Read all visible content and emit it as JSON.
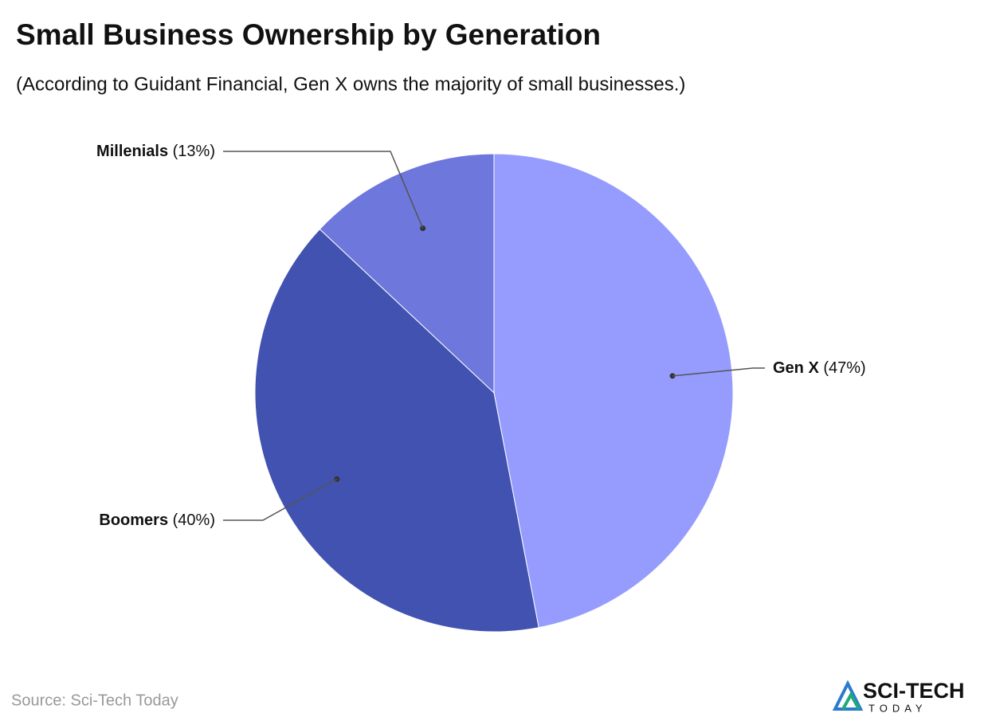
{
  "chart_data": {
    "type": "pie",
    "title": "Small Business Ownership by Generation",
    "subtitle": "(According to Guidant Financial, Gen X owns the majority of small businesses.)",
    "categories": [
      "Gen X",
      "Boomers",
      "Millenials"
    ],
    "values": [
      47,
      40,
      13
    ],
    "value_labels": [
      "(47%)",
      "(40%)",
      "(13%)"
    ],
    "colors": [
      "#959cfd",
      "#4152b0",
      "#6d77dc"
    ],
    "source": "Source: Sci-Tech Today",
    "logo": {
      "name": "SCI-TECH",
      "tagline": "TODAY"
    }
  }
}
